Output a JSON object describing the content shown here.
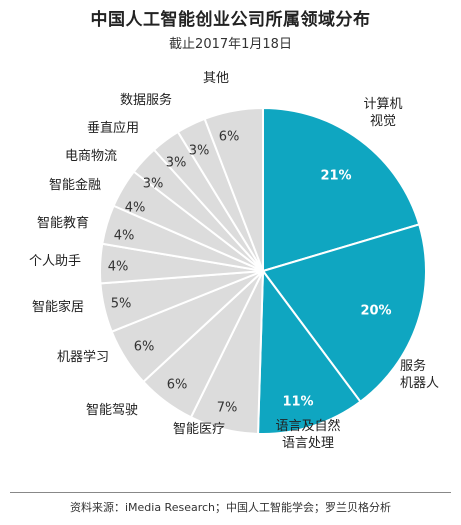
{
  "title": "中国人工智能创业公司所属领域分布",
  "subtitle": "截止2017年1月18日",
  "source": "资料来源：iMedia Research；中国人工智能学会；罗兰贝格分析",
  "colors": {
    "highlight": "#0fa6c1",
    "other": "#dcdcdc",
    "divider": "#ffffff"
  },
  "chart_data": {
    "type": "pie",
    "title": "中国人工智能创业公司所属领域分布",
    "start": "12 o'clock, clockwise",
    "slices": [
      {
        "label": "计算机视觉",
        "lines": [
          "计算机",
          "视觉"
        ],
        "value": 21,
        "display": "21%",
        "highlight": true
      },
      {
        "label": "服务机器人",
        "lines": [
          "服务",
          "机器人"
        ],
        "value": 20,
        "display": "20%",
        "highlight": true
      },
      {
        "label": "语言及自然语言处理",
        "lines": [
          "语言及自然",
          "语言处理"
        ],
        "value": 11,
        "display": "11%",
        "highlight": true
      },
      {
        "label": "智能医疗",
        "lines": [
          "智能医疗"
        ],
        "value": 7,
        "display": "7%",
        "highlight": false
      },
      {
        "label": "智能驾驶",
        "lines": [
          "智能驾驶"
        ],
        "value": 6,
        "display": "6%",
        "highlight": false
      },
      {
        "label": "机器学习",
        "lines": [
          "机器学习"
        ],
        "value": 6,
        "display": "6%",
        "highlight": false
      },
      {
        "label": "智能家居",
        "lines": [
          "智能家居"
        ],
        "value": 5,
        "display": "5%",
        "highlight": false
      },
      {
        "label": "个人助手",
        "lines": [
          "个人助手"
        ],
        "value": 4,
        "display": "4%",
        "highlight": false
      },
      {
        "label": "智能教育",
        "lines": [
          "智能教育"
        ],
        "value": 4,
        "display": "4%",
        "highlight": false
      },
      {
        "label": "智能金融",
        "lines": [
          "智能金融"
        ],
        "value": 4,
        "display": "4%",
        "highlight": false
      },
      {
        "label": "电商物流",
        "lines": [
          "电商物流"
        ],
        "value": 3,
        "display": "3%",
        "highlight": false
      },
      {
        "label": "垂直应用",
        "lines": [
          "垂直应用"
        ],
        "value": 3,
        "display": "3%",
        "highlight": false
      },
      {
        "label": "数据服务",
        "lines": [
          "数据服务"
        ],
        "value": 3,
        "display": "3%",
        "highlight": false
      },
      {
        "label": "其他",
        "lines": [
          "其他"
        ],
        "value": 6,
        "display": "6%",
        "highlight": false
      }
    ]
  }
}
